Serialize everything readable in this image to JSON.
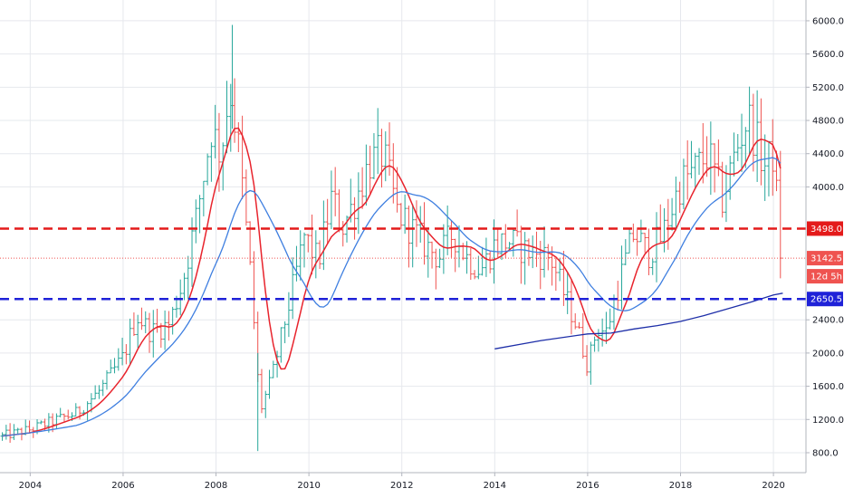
{
  "chart_data": {
    "type": "ohlc",
    "title": "",
    "xlabel": "",
    "ylabel": "",
    "ylim": [
      560,
      6250
    ],
    "xlim": [
      2003.35,
      2020.7
    ],
    "grid": true,
    "x_ticks": [
      {
        "value": 2004,
        "label": "2004"
      },
      {
        "value": 2006,
        "label": "2006"
      },
      {
        "value": 2008,
        "label": "2008"
      },
      {
        "value": 2010,
        "label": "2010"
      },
      {
        "value": 2012,
        "label": "2012"
      },
      {
        "value": 2014,
        "label": "2014"
      },
      {
        "value": 2016,
        "label": "2016"
      },
      {
        "value": 2018,
        "label": "2018"
      },
      {
        "value": 2020,
        "label": "2020"
      }
    ],
    "y_ticks": [
      {
        "value": 800,
        "label": "800.0"
      },
      {
        "value": 1200,
        "label": "1200.0"
      },
      {
        "value": 1600,
        "label": "1600.0"
      },
      {
        "value": 2000,
        "label": "2000.0"
      },
      {
        "value": 2400,
        "label": "2400.0"
      },
      {
        "value": 4000,
        "label": "4000.0"
      },
      {
        "value": 4400,
        "label": "4400.0"
      },
      {
        "value": 4800,
        "label": "4800.0"
      },
      {
        "value": 5200,
        "label": "5200.0"
      },
      {
        "value": 5600,
        "label": "5600.0"
      },
      {
        "value": 6000,
        "label": "6000.0"
      }
    ],
    "anchors": [
      [
        2003.4,
        1000
      ],
      [
        2004.0,
        1080
      ],
      [
        2004.5,
        1180
      ],
      [
        2005.0,
        1280
      ],
      [
        2005.5,
        1550
      ],
      [
        2006.0,
        1950
      ],
      [
        2006.3,
        2450
      ],
      [
        2006.6,
        2250
      ],
      [
        2007.0,
        2350
      ],
      [
        2007.3,
        2900
      ],
      [
        2007.6,
        3700
      ],
      [
        2007.9,
        4700
      ],
      [
        2008.1,
        4400
      ],
      [
        2008.3,
        5200
      ],
      [
        2008.5,
        4400
      ],
      [
        2008.75,
        2900
      ],
      [
        2008.95,
        1300
      ],
      [
        2009.2,
        1700
      ],
      [
        2009.45,
        2300
      ],
      [
        2009.7,
        2900
      ],
      [
        2009.9,
        3400
      ],
      [
        2010.2,
        3100
      ],
      [
        2010.5,
        3900
      ],
      [
        2010.7,
        3500
      ],
      [
        2011.0,
        3850
      ],
      [
        2011.3,
        4300
      ],
      [
        2011.6,
        4400
      ],
      [
        2011.9,
        3700
      ],
      [
        2012.2,
        3500
      ],
      [
        2012.5,
        3300
      ],
      [
        2012.8,
        3150
      ],
      [
        2013.1,
        3450
      ],
      [
        2013.4,
        3150
      ],
      [
        2013.7,
        3000
      ],
      [
        2014.0,
        3300
      ],
      [
        2014.3,
        3350
      ],
      [
        2014.6,
        3250
      ],
      [
        2014.9,
        3200
      ],
      [
        2015.2,
        3150
      ],
      [
        2015.5,
        2700
      ],
      [
        2015.75,
        2350
      ],
      [
        2016.0,
        1850
      ],
      [
        2016.2,
        2300
      ],
      [
        2016.4,
        2250
      ],
      [
        2016.7,
        2900
      ],
      [
        2017.0,
        3450
      ],
      [
        2017.3,
        3200
      ],
      [
        2017.6,
        3400
      ],
      [
        2018.0,
        4050
      ],
      [
        2018.3,
        4200
      ],
      [
        2018.6,
        4400
      ],
      [
        2018.9,
        3850
      ],
      [
        2019.2,
        4450
      ],
      [
        2019.45,
        4850
      ],
      [
        2019.6,
        4600
      ],
      [
        2019.8,
        4250
      ],
      [
        2020.0,
        4400
      ],
      [
        2020.12,
        3500
      ],
      [
        2020.2,
        3142.5
      ]
    ],
    "peak_bars": [
      {
        "x": 2008.35,
        "high": 5950,
        "low": 4700
      },
      {
        "x": 2008.9,
        "high": 2000,
        "low": 820
      }
    ],
    "series": [
      {
        "name": "",
        "type": "line",
        "color": "#e8242d",
        "smoothing_months": 8
      },
      {
        "name": "",
        "type": "line",
        "color": "#3f7fe0",
        "smoothing_months": 20
      },
      {
        "name": "",
        "type": "line",
        "color": "#1d2ea8",
        "points": [
          [
            2014.0,
            2050
          ],
          [
            2015.0,
            2150
          ],
          [
            2016.0,
            2230
          ],
          [
            2016.5,
            2240
          ],
          [
            2017.0,
            2290
          ],
          [
            2017.5,
            2330
          ],
          [
            2018.0,
            2380
          ],
          [
            2018.5,
            2450
          ],
          [
            2019.0,
            2530
          ],
          [
            2019.5,
            2610
          ],
          [
            2020.0,
            2700
          ],
          [
            2020.2,
            2720
          ]
        ]
      }
    ],
    "colors": {
      "up": "#26a69a",
      "down": "#ef5350",
      "grid": "#e6e8ed"
    },
    "horizontal_lines": [
      {
        "value": 3498.0,
        "label": "3498.0",
        "color": "#e41a1a",
        "style": "dashed"
      },
      {
        "value": 2650.5,
        "label": "2650.5",
        "color": "#1f22d8",
        "style": "dashed"
      },
      {
        "value": 3142.5,
        "label": "3142.5",
        "color": "#ef5350",
        "style": "dotted"
      }
    ],
    "countdown_label": "12d 5h"
  }
}
